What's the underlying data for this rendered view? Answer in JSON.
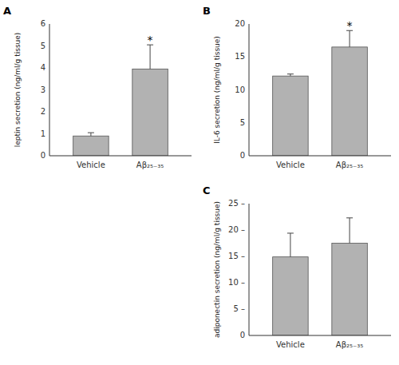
{
  "chart_data": [
    {
      "type": "bar",
      "title": "A",
      "ylabel": "leptin secretion (ng/ml/g tissue)",
      "categories": [
        "Vehicle",
        "Aβ₂₅₋₃₅"
      ],
      "values": [
        0.9,
        3.95
      ],
      "errors": [
        0.15,
        1.1
      ],
      "color": "#b2b2b2",
      "ylim": [
        0,
        6
      ],
      "yticks": [
        0,
        1,
        2,
        3,
        4,
        5,
        6
      ],
      "grid": false,
      "annotations": [
        {
          "category": "Aβ₂₅₋₃₅",
          "text": "*"
        }
      ]
    },
    {
      "type": "bar",
      "title": "B",
      "ylabel": "IL-6 secretion (ng/ml/g tissue)",
      "categories": [
        "Vehicle",
        "Aβ₂₅₋₃₅"
      ],
      "values": [
        12.1,
        16.5
      ],
      "errors": [
        0.3,
        2.5
      ],
      "color": "#b2b2b2",
      "ylim": [
        0,
        20
      ],
      "yticks": [
        0,
        5,
        10,
        15,
        20
      ],
      "grid": false,
      "annotations": [
        {
          "category": "Aβ₂₅₋₃₅",
          "text": "*"
        }
      ]
    },
    {
      "type": "bar",
      "title": "C",
      "ylabel": "adiponectin secretion (ng/ml/g tissue)",
      "categories": [
        "Vehicle",
        "Aβ₂₅₋₃₅"
      ],
      "values": [
        14.9,
        17.5
      ],
      "errors": [
        4.5,
        4.8
      ],
      "color": "#b2b2b2",
      "ylim": [
        0,
        25
      ],
      "yticks": [
        0,
        {
          "value": 5,
          "label": "5 –"
        },
        {
          "value": 10,
          "label": "10 –"
        },
        {
          "value": 15,
          "label": "15 –"
        },
        {
          "value": 20,
          "label": "20 –"
        },
        {
          "value": 25,
          "label": "25 –"
        }
      ],
      "grid": false
    }
  ]
}
